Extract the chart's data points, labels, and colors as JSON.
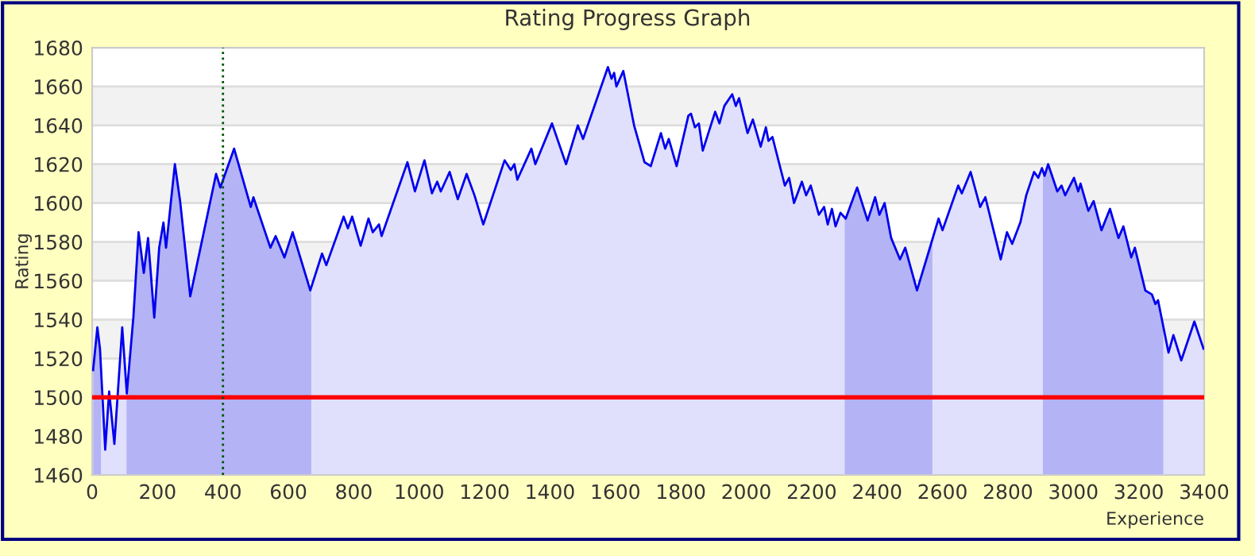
{
  "chart_data": {
    "type": "area",
    "title": "Rating Progress Graph",
    "xlabel": "Experience",
    "ylabel": "Rating",
    "xlim": [
      0,
      3400
    ],
    "xticks": [
      0,
      200,
      400,
      600,
      800,
      1000,
      1200,
      1400,
      1600,
      1800,
      2000,
      2200,
      2400,
      2600,
      2800,
      3000,
      3200,
      3400
    ],
    "ylim": [
      1460,
      1680
    ],
    "yticks": [
      1460,
      1480,
      1500,
      1520,
      1540,
      1560,
      1580,
      1600,
      1620,
      1640,
      1660,
      1680
    ],
    "grid": "y",
    "legend": false,
    "marker": "none",
    "line_style": "solid",
    "series": [
      {
        "color": "#0000ee",
        "x": [
          3,
          16,
          24,
          40,
          52,
          68,
          92,
          106,
          126,
          142,
          158,
          171,
          190,
          205,
          218,
          226,
          253,
          269,
          300,
          379,
          392,
          434,
          485,
          493,
          545,
          561,
          588,
          613,
          667,
          703,
          716,
          769,
          782,
          795,
          821,
          845,
          858,
          877,
          885,
          964,
          987,
          1016,
          1039,
          1055,
          1066,
          1093,
          1118,
          1145,
          1169,
          1196,
          1261,
          1280,
          1291,
          1300,
          1343,
          1355,
          1406,
          1449,
          1485,
          1501,
          1577,
          1588,
          1596,
          1603,
          1624,
          1657,
          1689,
          1708,
          1739,
          1752,
          1763,
          1787,
          1823,
          1831,
          1843,
          1855,
          1867,
          1905,
          1918,
          1933,
          1957,
          1968,
          1978,
          2004,
          2020,
          2044,
          2060,
          2068,
          2080,
          2118,
          2131,
          2146,
          2170,
          2183,
          2197,
          2222,
          2238,
          2249,
          2262,
          2273,
          2288,
          2304,
          2339,
          2371,
          2394,
          2407,
          2423,
          2443,
          2470,
          2486,
          2522,
          2565,
          2588,
          2600,
          2648,
          2659,
          2686,
          2715,
          2731,
          2778,
          2797,
          2813,
          2838,
          2856,
          2880,
          2893,
          2904,
          2912,
          2923,
          2951,
          2964,
          2975,
          3002,
          3015,
          3022,
          3046,
          3062,
          3086,
          3112,
          3138,
          3153,
          3177,
          3188,
          3220,
          3240,
          3251,
          3259,
          3291,
          3306,
          3330,
          3370,
          3398
        ],
        "values": [
          1514,
          1536,
          1525,
          1473,
          1503,
          1476,
          1536,
          1502,
          1541,
          1585,
          1564,
          1582,
          1541,
          1577,
          1590,
          1577,
          1620,
          1601,
          1552,
          1615,
          1608,
          1628,
          1598,
          1603,
          1577,
          1583,
          1572,
          1585,
          1555,
          1574,
          1568,
          1593,
          1587,
          1593,
          1578,
          1592,
          1585,
          1589,
          1583,
          1621,
          1606,
          1622,
          1605,
          1611,
          1606,
          1616,
          1602,
          1615,
          1604,
          1589,
          1622,
          1617,
          1620,
          1612,
          1628,
          1620,
          1641,
          1620,
          1640,
          1633,
          1670,
          1664,
          1667,
          1660,
          1668,
          1640,
          1621,
          1619,
          1636,
          1628,
          1633,
          1619,
          1645,
          1646,
          1639,
          1641,
          1627,
          1647,
          1641,
          1650,
          1656,
          1650,
          1654,
          1636,
          1643,
          1629,
          1639,
          1632,
          1634,
          1609,
          1613,
          1600,
          1611,
          1604,
          1609,
          1594,
          1598,
          1589,
          1597,
          1588,
          1595,
          1592,
          1608,
          1591,
          1603,
          1594,
          1600,
          1582,
          1571,
          1577,
          1555,
          1579,
          1592,
          1586,
          1609,
          1605,
          1616,
          1598,
          1603,
          1571,
          1585,
          1579,
          1590,
          1604,
          1616,
          1613,
          1618,
          1614,
          1620,
          1606,
          1609,
          1604,
          1613,
          1606,
          1610,
          1596,
          1601,
          1586,
          1597,
          1582,
          1588,
          1572,
          1577,
          1555,
          1553,
          1548,
          1550,
          1523,
          1532,
          1519,
          1539,
          1525
        ]
      }
    ],
    "ref_lines": [
      {
        "axis": "y",
        "value": 1500,
        "color": "#ff0000",
        "line_style": "solid"
      },
      {
        "axis": "x",
        "value": 400,
        "color": "#005500",
        "line_style": "dotted"
      }
    ],
    "bands": [
      {
        "axis": "x",
        "from": 0,
        "to": 27,
        "color": "#ccccf8"
      },
      {
        "axis": "x",
        "from": 105,
        "to": 670,
        "color": "#ccccf8"
      },
      {
        "axis": "x",
        "from": 2301,
        "to": 2569,
        "color": "#ccccf8"
      },
      {
        "axis": "x",
        "from": 2907,
        "to": 3275,
        "color": "#ccccf8"
      }
    ]
  }
}
